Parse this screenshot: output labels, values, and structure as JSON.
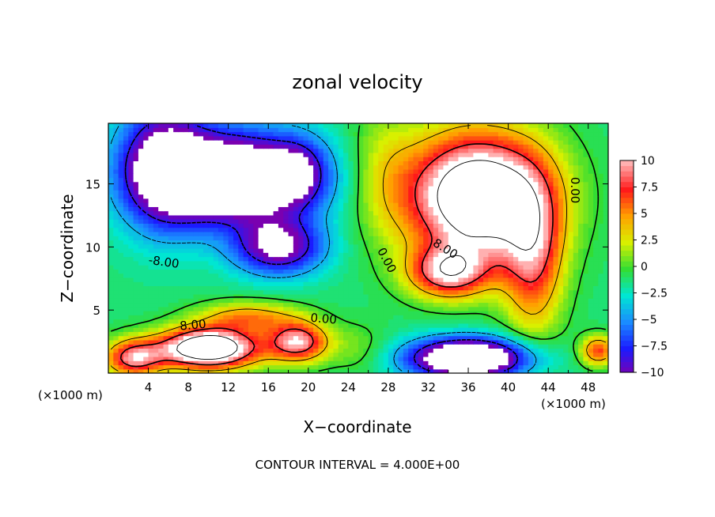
{
  "chart_data": {
    "type": "heatmap",
    "title": "zonal velocity",
    "xlabel": "X−coordinate",
    "ylabel": "Z−coordinate",
    "x_units_left": "(×1000 m)",
    "x_units_right": "(×1000 m)",
    "footer": "CONTOUR INTERVAL = 4.000E+00",
    "xlim": [
      0,
      50
    ],
    "ylim": [
      0,
      19.8
    ],
    "x_ticks": [
      4,
      8,
      12,
      16,
      20,
      24,
      28,
      32,
      36,
      40,
      44,
      48
    ],
    "y_ticks": [
      5,
      10,
      15
    ],
    "colorbar": {
      "range": [
        -10,
        10
      ],
      "ticks": [
        -10,
        -7.5,
        -5,
        -2.5,
        0,
        2.5,
        5,
        7.5,
        10
      ],
      "tick_labels": [
        "−10",
        "−7.5",
        "−5",
        "−2.5",
        "0",
        "2.5",
        "5",
        "7.5",
        "10"
      ]
    },
    "contour_interval": 4.0,
    "contour_labels": [
      {
        "text": "-8.00",
        "x": 5.5,
        "z": 8.5,
        "angle": 8
      },
      {
        "text": "0.00",
        "x": 21.5,
        "z": 4.0,
        "angle": 5
      },
      {
        "text": "8.00",
        "x": 8.5,
        "z": 3.5,
        "angle": -5
      },
      {
        "text": "0.00",
        "x": 27.5,
        "z": 8.8,
        "angle": 62
      },
      {
        "text": "8.00",
        "x": 33.5,
        "z": 9.6,
        "angle": 32
      },
      {
        "text": "0.00",
        "x": 46.3,
        "z": 14.5,
        "angle": 90
      }
    ],
    "field_centers": [
      {
        "x": 13,
        "z": 15.5,
        "v": -16,
        "sx": 8,
        "sz": 3.5
      },
      {
        "x": 5.5,
        "z": 16.5,
        "v": -10,
        "sx": 4.5,
        "sz": 5
      },
      {
        "x": 17,
        "z": 10,
        "v": -10,
        "sx": 4.5,
        "sz": 2.2
      },
      {
        "x": 19,
        "z": 16,
        "v": -4,
        "sx": 2.5,
        "sz": 2.5
      },
      {
        "x": 37,
        "z": 14,
        "v": 18,
        "sx": 7,
        "sz": 5
      },
      {
        "x": 34,
        "z": 8,
        "v": 10,
        "sx": 4,
        "sz": 2
      },
      {
        "x": 42.5,
        "z": 9,
        "v": 8,
        "sx": 3,
        "sz": 6
      },
      {
        "x": 27.5,
        "z": 16,
        "v": 3,
        "sx": 3.5,
        "sz": 5
      },
      {
        "x": 10,
        "z": 2,
        "v": 18,
        "sx": 5,
        "sz": 1.6
      },
      {
        "x": 2.5,
        "z": 1.2,
        "v": 10,
        "sx": 3,
        "sz": 1.5
      },
      {
        "x": 19,
        "z": 2.5,
        "v": 11,
        "sx": 3,
        "sz": 1.6
      },
      {
        "x": 14,
        "z": 4.5,
        "v": 6,
        "sx": 5,
        "sz": 1.2
      },
      {
        "x": 36,
        "z": 1.2,
        "v": -16,
        "sx": 6,
        "sz": 1.6
      },
      {
        "x": 49,
        "z": 1.8,
        "v": 8,
        "sx": 1.8,
        "sz": 1.2
      },
      {
        "x": 25,
        "z": 2,
        "v": 2,
        "sx": 3,
        "sz": 2
      }
    ],
    "grid": false,
    "legend": "colorbar right"
  }
}
